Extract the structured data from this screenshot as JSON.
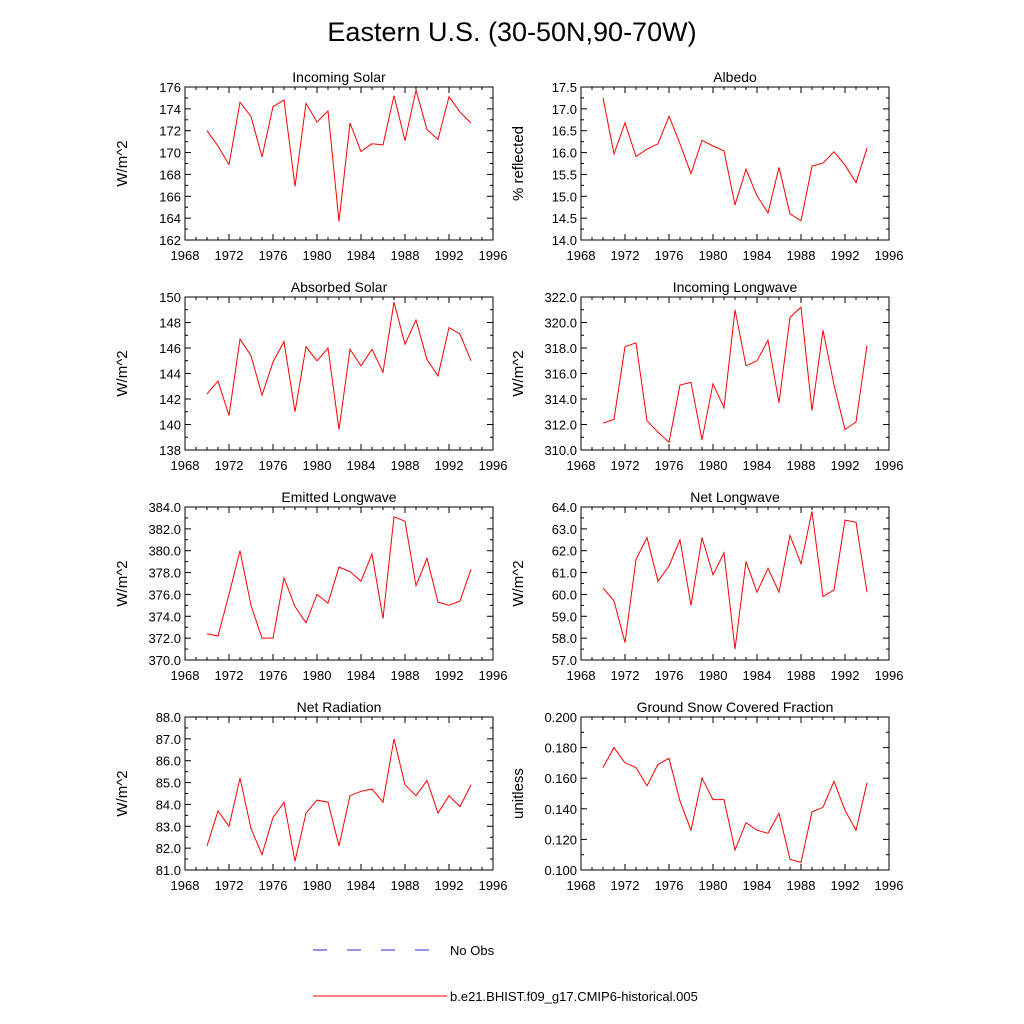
{
  "figure_title": "Eastern U.S. (30-50N,90-70W)",
  "legend": [
    {
      "label": "No Obs",
      "color": "#2b2bd6",
      "style": "dashed"
    },
    {
      "label": "b.e21.BHIST.f09_g17.CMIP6-historical.005",
      "color": "#ff0000",
      "style": "solid"
    }
  ],
  "chart_data": [
    {
      "type": "line",
      "title": "Incoming Solar",
      "ylabel": "W/m^2",
      "xlim": [
        1968,
        1996
      ],
      "xticks": [
        1968,
        1972,
        1976,
        1980,
        1984,
        1988,
        1992,
        1996
      ],
      "ylim": [
        162,
        176
      ],
      "yticks": [
        162,
        164,
        166,
        168,
        170,
        172,
        174,
        176
      ],
      "ytick_decimals": 0,
      "x": [
        1970,
        1971,
        1972,
        1973,
        1974,
        1975,
        1976,
        1977,
        1978,
        1979,
        1980,
        1981,
        1982,
        1983,
        1984,
        1985,
        1986,
        1987,
        1988,
        1989,
        1990,
        1991,
        1992,
        1993,
        1994
      ],
      "series": [
        {
          "name": "b.e21.BHIST.f09_g17.CMIP6-historical.005",
          "color": "#ff0000",
          "values": [
            172.0,
            170.6,
            168.9,
            174.6,
            173.3,
            169.6,
            174.2,
            174.8,
            166.9,
            174.5,
            172.8,
            173.8,
            163.7,
            172.7,
            170.1,
            170.8,
            170.7,
            175.2,
            171.1,
            175.7,
            172.1,
            171.2,
            175.1,
            173.7,
            172.7
          ]
        }
      ]
    },
    {
      "type": "line",
      "title": "Albedo",
      "ylabel": "% reflected",
      "xlim": [
        1968,
        1996
      ],
      "xticks": [
        1968,
        1972,
        1976,
        1980,
        1984,
        1988,
        1992,
        1996
      ],
      "ylim": [
        14.0,
        17.5
      ],
      "yticks": [
        14.0,
        14.5,
        15.0,
        15.5,
        16.0,
        16.5,
        17.0,
        17.5
      ],
      "ytick_decimals": 1,
      "x": [
        1970,
        1971,
        1972,
        1973,
        1974,
        1975,
        1976,
        1977,
        1978,
        1979,
        1980,
        1981,
        1982,
        1983,
        1984,
        1985,
        1986,
        1987,
        1988,
        1989,
        1990,
        1991,
        1992,
        1993,
        1994
      ],
      "series": [
        {
          "name": "b.e21.BHIST.f09_g17.CMIP6-historical.005",
          "color": "#ff0000",
          "values": [
            17.25,
            15.97,
            16.68,
            15.91,
            16.08,
            16.2,
            16.83,
            16.2,
            15.52,
            16.28,
            16.15,
            16.04,
            14.8,
            15.62,
            15.01,
            14.62,
            15.66,
            14.6,
            14.44,
            15.69,
            15.76,
            16.02,
            15.71,
            15.31,
            16.1
          ]
        }
      ]
    },
    {
      "type": "line",
      "title": "Absorbed Solar",
      "ylabel": "W/m^2",
      "xlim": [
        1968,
        1996
      ],
      "xticks": [
        1968,
        1972,
        1976,
        1980,
        1984,
        1988,
        1992,
        1996
      ],
      "ylim": [
        138,
        150
      ],
      "yticks": [
        138,
        140,
        142,
        144,
        146,
        148,
        150
      ],
      "ytick_decimals": 0,
      "x": [
        1970,
        1971,
        1972,
        1973,
        1974,
        1975,
        1976,
        1977,
        1978,
        1979,
        1980,
        1981,
        1982,
        1983,
        1984,
        1985,
        1986,
        1987,
        1988,
        1989,
        1990,
        1991,
        1992,
        1993,
        1994
      ],
      "series": [
        {
          "name": "b.e21.BHIST.f09_g17.CMIP6-historical.005",
          "color": "#ff0000",
          "values": [
            142.4,
            143.4,
            140.7,
            146.7,
            145.4,
            142.3,
            144.9,
            146.5,
            141.0,
            146.1,
            145.0,
            146.0,
            139.6,
            145.9,
            144.6,
            145.9,
            144.1,
            149.6,
            146.3,
            148.2,
            145.1,
            143.8,
            147.6,
            147.1,
            145.0
          ]
        }
      ]
    },
    {
      "type": "line",
      "title": "Incoming Longwave",
      "ylabel": "W/m^2",
      "xlim": [
        1968,
        1996
      ],
      "xticks": [
        1968,
        1972,
        1976,
        1980,
        1984,
        1988,
        1992,
        1996
      ],
      "ylim": [
        310.0,
        322.0
      ],
      "yticks": [
        310.0,
        312.0,
        314.0,
        316.0,
        318.0,
        320.0,
        322.0
      ],
      "ytick_decimals": 1,
      "x": [
        1970,
        1971,
        1972,
        1973,
        1974,
        1975,
        1976,
        1977,
        1978,
        1979,
        1980,
        1981,
        1982,
        1983,
        1984,
        1985,
        1986,
        1987,
        1988,
        1989,
        1990,
        1991,
        1992,
        1993,
        1994
      ],
      "series": [
        {
          "name": "b.e21.BHIST.f09_g17.CMIP6-historical.005",
          "color": "#ff0000",
          "values": [
            312.1,
            312.4,
            318.1,
            318.4,
            312.3,
            311.4,
            310.6,
            315.1,
            315.3,
            310.8,
            315.2,
            313.3,
            321.0,
            316.6,
            317.0,
            318.6,
            313.7,
            320.4,
            321.2,
            313.1,
            319.4,
            315.1,
            311.6,
            312.2,
            318.2
          ]
        }
      ]
    },
    {
      "type": "line",
      "title": "Emitted Longwave",
      "ylabel": "W/m^2",
      "xlim": [
        1968,
        1996
      ],
      "xticks": [
        1968,
        1972,
        1976,
        1980,
        1984,
        1988,
        1992,
        1996
      ],
      "ylim": [
        370.0,
        384.0
      ],
      "yticks": [
        370.0,
        372.0,
        374.0,
        376.0,
        378.0,
        380.0,
        382.0,
        384.0
      ],
      "ytick_decimals": 1,
      "x": [
        1970,
        1971,
        1972,
        1973,
        1974,
        1975,
        1976,
        1977,
        1978,
        1979,
        1980,
        1981,
        1982,
        1983,
        1984,
        1985,
        1986,
        1987,
        1988,
        1989,
        1990,
        1991,
        1992,
        1993,
        1994
      ],
      "series": [
        {
          "name": "b.e21.BHIST.f09_g17.CMIP6-historical.005",
          "color": "#ff0000",
          "values": [
            372.4,
            372.2,
            376.0,
            380.0,
            375.0,
            372.0,
            372.0,
            377.5,
            374.9,
            373.4,
            376.0,
            375.2,
            378.5,
            378.1,
            377.2,
            379.7,
            373.8,
            383.1,
            382.7,
            376.8,
            379.3,
            375.3,
            375.0,
            375.4,
            378.3
          ]
        }
      ]
    },
    {
      "type": "line",
      "title": "Net Longwave",
      "ylabel": "W/m^2",
      "xlim": [
        1968,
        1996
      ],
      "xticks": [
        1968,
        1972,
        1976,
        1980,
        1984,
        1988,
        1992,
        1996
      ],
      "ylim": [
        57.0,
        64.0
      ],
      "yticks": [
        57.0,
        58.0,
        59.0,
        60.0,
        61.0,
        62.0,
        63.0,
        64.0
      ],
      "ytick_decimals": 1,
      "x": [
        1970,
        1971,
        1972,
        1973,
        1974,
        1975,
        1976,
        1977,
        1978,
        1979,
        1980,
        1981,
        1982,
        1983,
        1984,
        1985,
        1986,
        1987,
        1988,
        1989,
        1990,
        1991,
        1992,
        1993,
        1994
      ],
      "series": [
        {
          "name": "b.e21.BHIST.f09_g17.CMIP6-historical.005",
          "color": "#ff0000",
          "values": [
            60.3,
            59.7,
            57.8,
            61.6,
            62.6,
            60.6,
            61.3,
            62.5,
            59.5,
            62.6,
            60.9,
            61.9,
            57.5,
            61.5,
            60.1,
            61.2,
            60.1,
            62.7,
            61.4,
            63.8,
            59.9,
            60.2,
            63.4,
            63.3,
            60.1
          ]
        }
      ]
    },
    {
      "type": "line",
      "title": "Net Radiation",
      "ylabel": "W/m^2",
      "xlim": [
        1968,
        1996
      ],
      "xticks": [
        1968,
        1972,
        1976,
        1980,
        1984,
        1988,
        1992,
        1996
      ],
      "ylim": [
        81.0,
        88.0
      ],
      "yticks": [
        81.0,
        82.0,
        83.0,
        84.0,
        85.0,
        86.0,
        87.0,
        88.0
      ],
      "ytick_decimals": 1,
      "x": [
        1970,
        1971,
        1972,
        1973,
        1974,
        1975,
        1976,
        1977,
        1978,
        1979,
        1980,
        1981,
        1982,
        1983,
        1984,
        1985,
        1986,
        1987,
        1988,
        1989,
        1990,
        1991,
        1992,
        1993,
        1994
      ],
      "series": [
        {
          "name": "b.e21.BHIST.f09_g17.CMIP6-historical.005",
          "color": "#ff0000",
          "values": [
            82.1,
            83.7,
            83.0,
            85.2,
            82.9,
            81.7,
            83.4,
            84.1,
            81.4,
            83.6,
            84.2,
            84.1,
            82.1,
            84.4,
            84.6,
            84.7,
            84.1,
            87.0,
            84.9,
            84.4,
            85.1,
            83.6,
            84.4,
            83.9,
            84.9
          ]
        }
      ]
    },
    {
      "type": "line",
      "title": "Ground Snow Covered Fraction",
      "ylabel": "unitless",
      "xlim": [
        1968,
        1996
      ],
      "xticks": [
        1968,
        1972,
        1976,
        1980,
        1984,
        1988,
        1992,
        1996
      ],
      "ylim": [
        0.1,
        0.2
      ],
      "yticks": [
        0.1,
        0.12,
        0.14,
        0.16,
        0.18,
        0.2
      ],
      "ytick_decimals": 3,
      "x": [
        1970,
        1971,
        1972,
        1973,
        1974,
        1975,
        1976,
        1977,
        1978,
        1979,
        1980,
        1981,
        1982,
        1983,
        1984,
        1985,
        1986,
        1987,
        1988,
        1989,
        1990,
        1991,
        1992,
        1993,
        1994
      ],
      "series": [
        {
          "name": "b.e21.BHIST.f09_g17.CMIP6-historical.005",
          "color": "#ff0000",
          "values": [
            0.167,
            0.18,
            0.17,
            0.167,
            0.155,
            0.169,
            0.173,
            0.145,
            0.126,
            0.16,
            0.146,
            0.146,
            0.113,
            0.131,
            0.126,
            0.124,
            0.137,
            0.107,
            0.105,
            0.138,
            0.141,
            0.158,
            0.139,
            0.126,
            0.157
          ]
        }
      ]
    }
  ]
}
